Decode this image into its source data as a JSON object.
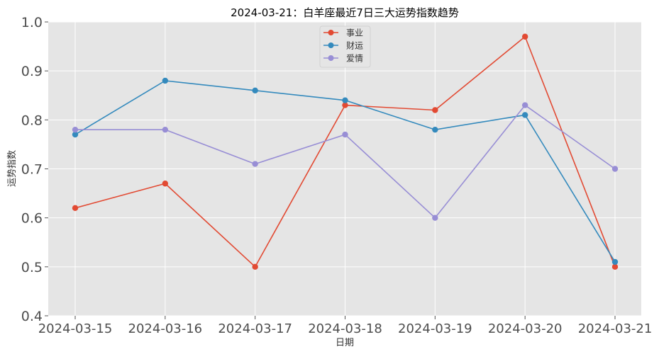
{
  "chart_data": {
    "type": "line",
    "title": "2024-03-21：白羊座最近7日三大运势指数趋势",
    "xlabel": "日期",
    "ylabel": "运势指数",
    "categories": [
      "2024-03-15",
      "2024-03-16",
      "2024-03-17",
      "2024-03-18",
      "2024-03-19",
      "2024-03-20",
      "2024-03-21"
    ],
    "ylim": [
      0.4,
      1.0
    ],
    "yticks": [
      "0.4",
      "0.5",
      "0.6",
      "0.7",
      "0.8",
      "0.9",
      "1.0"
    ],
    "grid": true,
    "legend_position": "top-center",
    "series": [
      {
        "name": "事业",
        "color": "#E24A33",
        "values": [
          0.62,
          0.67,
          0.5,
          0.83,
          0.82,
          0.97,
          0.5
        ]
      },
      {
        "name": "财运",
        "color": "#348ABD",
        "values": [
          0.77,
          0.88,
          0.86,
          0.84,
          0.78,
          0.81,
          0.51
        ]
      },
      {
        "name": "爱情",
        "color": "#988ED5",
        "values": [
          0.78,
          0.78,
          0.71,
          0.77,
          0.6,
          0.83,
          0.7
        ]
      }
    ]
  }
}
